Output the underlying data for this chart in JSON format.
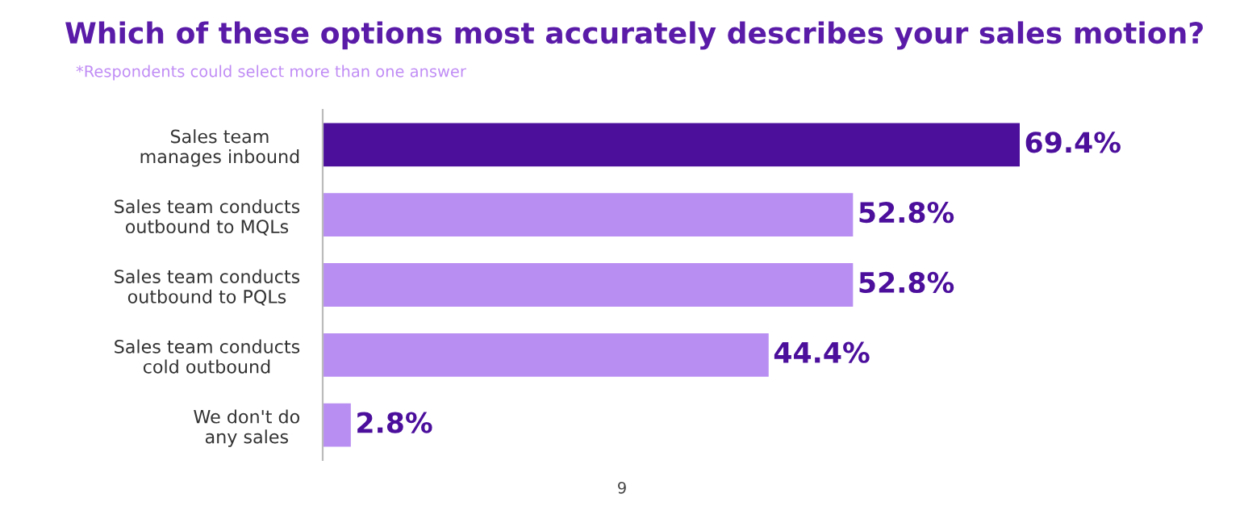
{
  "chart_data": {
    "type": "bar",
    "orientation": "horizontal",
    "title": "Which of these options most accurately describes your sales motion?",
    "subtitle": "*Respondents could select more than one answer",
    "categories": [
      "Sales team\nmanages inbound",
      "Sales team conducts\noutbound to MQLs",
      "Sales team conducts\noutbound to PQLs",
      "Sales team conducts\ncold outbound",
      "We don't do\nany sales"
    ],
    "values": [
      69.4,
      52.8,
      52.8,
      44.4,
      2.8
    ],
    "colors": [
      "#4b0f9c",
      "#b98ef2",
      "#b98ef2",
      "#b98ef2",
      "#b98ef2"
    ],
    "value_labels": [
      "69.4%",
      "52.8%",
      "52.8%",
      "44.4%",
      "2.8%"
    ],
    "annotations": [
      "9"
    ],
    "grid": false,
    "legend": false
  }
}
